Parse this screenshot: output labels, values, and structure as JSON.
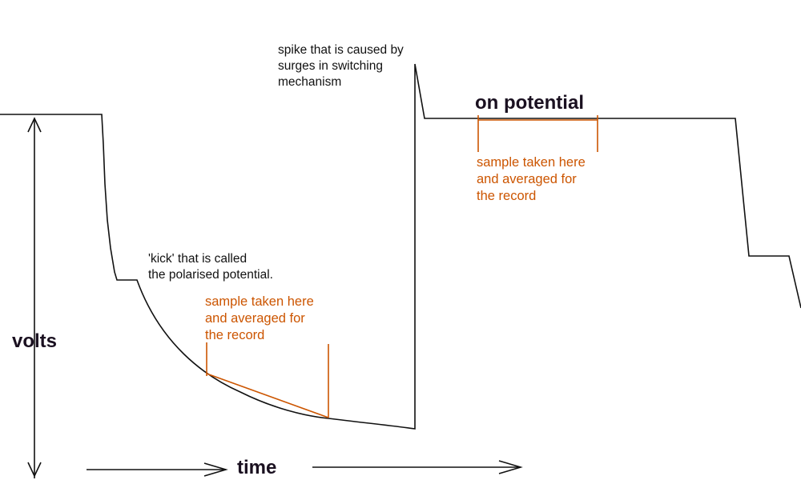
{
  "labels": {
    "spike_note": "spike that is caused by\nsurges in switching\nmechanism",
    "on_potential": "on potential",
    "sample_note_on": "sample taken here\nand averaged for\nthe record",
    "kick_note": "'kick' that is called\nthe polarised potential.",
    "sample_note_off": "sample taken here\nand averaged for\nthe record",
    "y_axis": "volts",
    "x_axis": "time"
  },
  "colors": {
    "waveform": "#111111",
    "annotation": "#cc5500",
    "text": "#111111"
  }
}
